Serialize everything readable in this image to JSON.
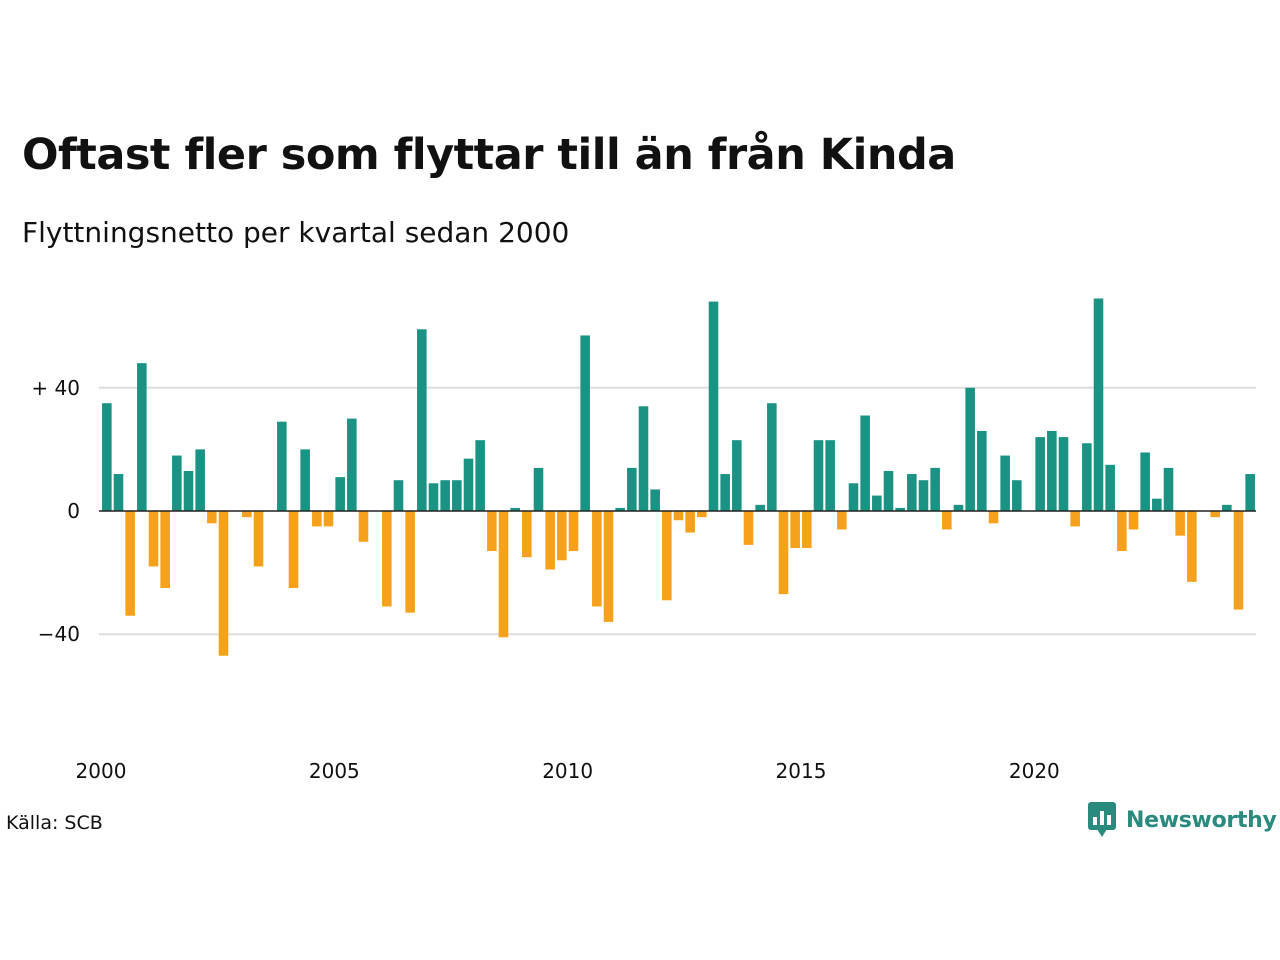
{
  "title": "Oftast fler som flyttar till än från Kinda",
  "subtitle": "Flyttningsnetto per kvartal sedan 2000",
  "source": "Källa: SCB",
  "brand": {
    "name": "Newsworthy",
    "color": "#2b8a7e",
    "icon": "chart-speech-bubble-icon"
  },
  "chart_data": {
    "type": "bar",
    "x_unit": "quarter",
    "start_quarter": "2000 Q1",
    "ylim": [
      -60,
      70
    ],
    "ytick_values": [
      -40,
      0,
      40
    ],
    "ytick_labels": [
      "−40",
      "0",
      "+ 40"
    ],
    "xtick_values": [
      2000,
      2005,
      2010,
      2015,
      2020
    ],
    "xtick_labels": [
      "2000",
      "2005",
      "2010",
      "2015",
      "2020"
    ],
    "grid": true,
    "legend": "none",
    "colors": {
      "positive": "#1a9384",
      "negative": "#f5a11c",
      "gridline": "#dddddd",
      "zeroline": "#222222"
    },
    "values": [
      35,
      12,
      -34,
      48,
      -18,
      -25,
      18,
      13,
      20,
      -4,
      -47,
      0,
      -2,
      -18,
      0,
      29,
      -25,
      20,
      -5,
      -5,
      11,
      30,
      -10,
      0,
      -31,
      10,
      -33,
      59,
      9,
      10,
      10,
      17,
      23,
      -13,
      -41,
      1,
      -15,
      14,
      -19,
      -16,
      -13,
      57,
      -31,
      -36,
      1,
      14,
      34,
      7,
      -29,
      -3,
      -7,
      -2,
      68,
      12,
      23,
      -11,
      2,
      35,
      -27,
      -12,
      -12,
      23,
      23,
      -6,
      9,
      31,
      5,
      13,
      1,
      12,
      10,
      14,
      -6,
      2,
      40,
      26,
      -4,
      18,
      10,
      0,
      24,
      26,
      24,
      -5,
      22,
      69,
      15,
      -13,
      -6,
      19,
      4,
      14,
      -8,
      -23,
      0,
      -2,
      2,
      -32,
      12
    ]
  }
}
